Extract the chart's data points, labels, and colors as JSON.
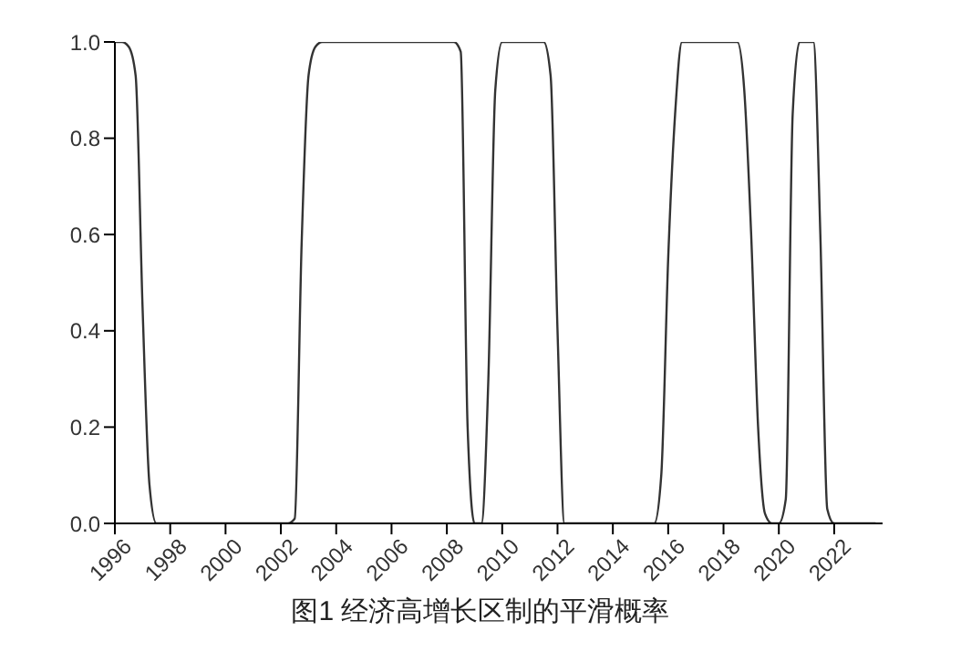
{
  "chart_data": {
    "type": "line",
    "title": "图1 经济高增长区制的平滑概率",
    "x": [
      1996,
      1996.25,
      1996.5,
      1996.75,
      1997,
      1997.25,
      1997.5,
      2002.25,
      2002.5,
      2002.75,
      2003,
      2003.25,
      2003.5,
      2008.25,
      2008.5,
      2008.75,
      2009,
      2009.25,
      2009.5,
      2009.75,
      2010,
      2011.5,
      2011.75,
      2012,
      2012.25,
      2015.5,
      2015.75,
      2016,
      2016.25,
      2016.5,
      2018.5,
      2018.75,
      2019,
      2019.25,
      2019.5,
      2019.75,
      2020,
      2020.25,
      2020.5,
      2020.75,
      2021.25,
      2021.5,
      2021.75,
      2022,
      2023.5
    ],
    "series": [
      {
        "color": "#333333",
        "values": [
          1,
          1,
          0.99,
          0.93,
          0.45,
          0.08,
          0,
          0,
          0.01,
          0.58,
          0.93,
          0.99,
          1,
          1,
          0.98,
          0.2,
          0,
          0,
          0.3,
          0.9,
          1,
          1,
          0.93,
          0.4,
          0,
          0,
          0.1,
          0.55,
          0.85,
          1,
          1,
          0.9,
          0.6,
          0.2,
          0.02,
          0,
          0,
          0.05,
          0.85,
          1,
          1,
          0.6,
          0.03,
          0,
          0
        ]
      }
    ],
    "xlim": [
      1996,
      2023.75
    ],
    "xticks": [
      1996,
      1998,
      2000,
      2002,
      2004,
      2006,
      2008,
      2010,
      2012,
      2014,
      2016,
      2018,
      2020,
      2022
    ],
    "ylim": [
      0,
      1
    ],
    "yticks": [
      {
        "value": 0,
        "label": "0.0"
      },
      {
        "value": 0.2,
        "label": "0.2"
      },
      {
        "value": 0.4,
        "label": "0.4"
      },
      {
        "value": 0.6,
        "label": "0.6"
      },
      {
        "value": 0.8,
        "label": "0.8"
      },
      {
        "value": 1,
        "label": "1.0"
      }
    ],
    "grid": false,
    "legend": false,
    "marker": "none",
    "line_style": "solid"
  }
}
